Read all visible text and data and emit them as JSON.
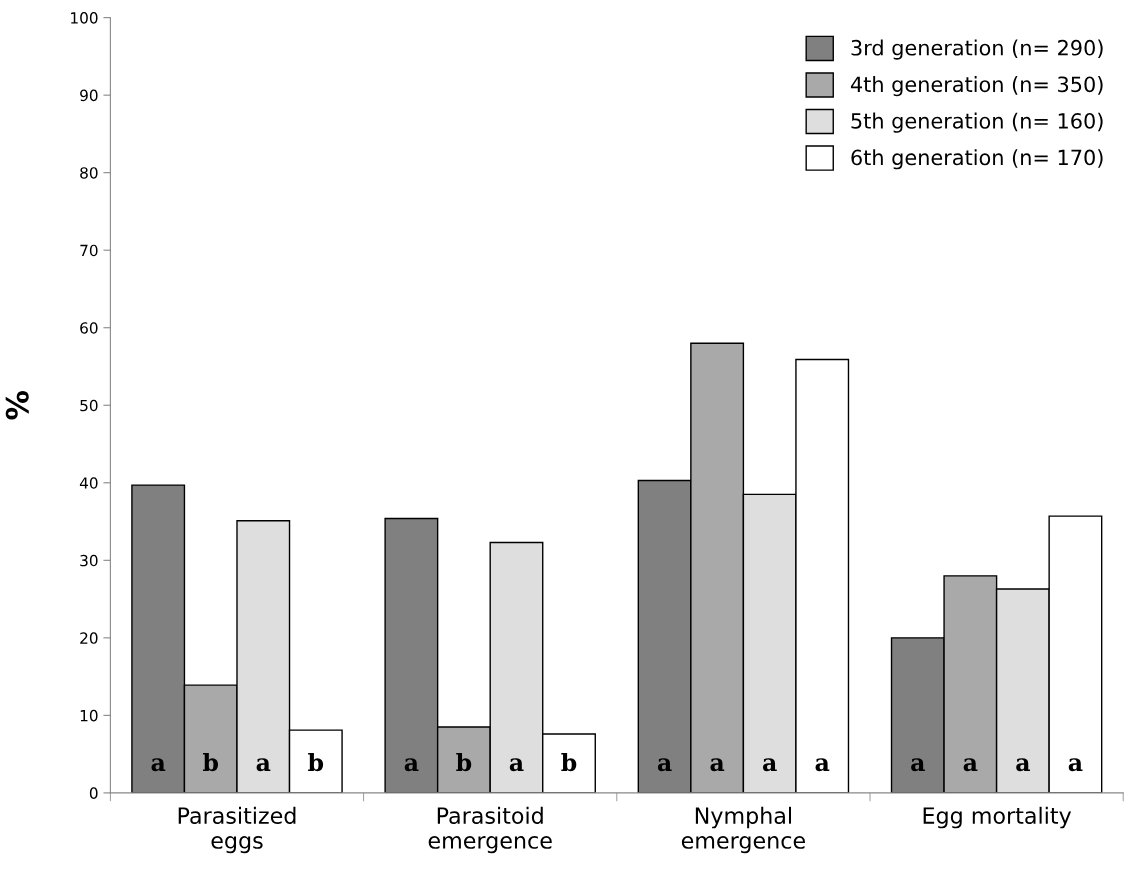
{
  "chart_data": {
    "type": "bar",
    "ylabel": "%",
    "categories": [
      "Parasitized\neggs",
      "Parasitoid\nemergence",
      "Nymphal\nemergence",
      "Egg mortality"
    ],
    "series": [
      {
        "name": "3rd generation (n= 290)",
        "color": "#808080",
        "values": [
          39.7,
          35.4,
          40.3,
          20.0
        ],
        "value_labels": [
          "a",
          "a",
          "a",
          "a"
        ]
      },
      {
        "name": "4th generation (n= 350)",
        "color": "#a9a9a9",
        "values": [
          13.9,
          8.5,
          58.0,
          28.0
        ],
        "value_labels": [
          "b",
          "b",
          "a",
          "a"
        ]
      },
      {
        "name": "5th generation (n= 160)",
        "color": "#dedede",
        "values": [
          35.1,
          32.3,
          38.5,
          26.3
        ],
        "value_labels": [
          "a",
          "a",
          "a",
          "a"
        ]
      },
      {
        "name": "6th generation (n= 170)",
        "color": "#ffffff",
        "values": [
          8.1,
          7.6,
          55.9,
          35.7
        ],
        "value_labels": [
          "b",
          "b",
          "a",
          "a"
        ]
      }
    ],
    "ylim": [
      0,
      100
    ],
    "yticks": [
      0,
      10,
      20,
      30,
      40,
      50,
      60,
      70,
      80,
      90,
      100
    ],
    "grid": false,
    "legend": "top right"
  }
}
